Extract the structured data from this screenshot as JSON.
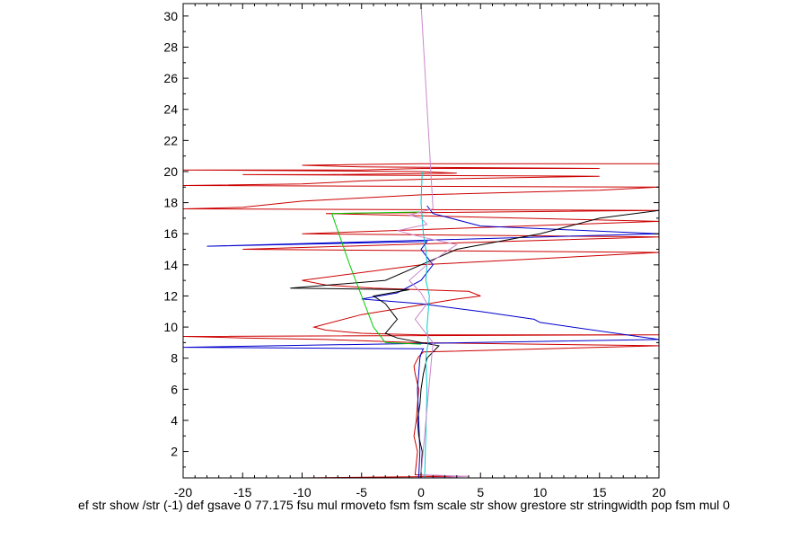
{
  "chart_data": {
    "type": "line",
    "title": "",
    "xlabel": "ef str show /str (-1) def gsave 0 77.175 fsu mul rmoveto fsm fsm scale str show grestore str stringwidth pop fsm mul 0",
    "ylabel": "",
    "xlim": [
      -20,
      20
    ],
    "ylim": [
      0.3,
      30.8
    ],
    "x_ticks": [
      -20,
      -15,
      -10,
      -5,
      0,
      5,
      10,
      15,
      20
    ],
    "x_tick_labels": [
      "-20",
      "-15",
      "-10",
      "-5",
      "0",
      "5",
      "10",
      "15",
      "20"
    ],
    "y_ticks": [
      2,
      4,
      6,
      8,
      10,
      12,
      14,
      16,
      18,
      20,
      22,
      24,
      26,
      28,
      30
    ],
    "y_tick_labels": [
      "2",
      "4",
      "6",
      "8",
      "10",
      "12",
      "14",
      "16",
      "18",
      "20",
      "22",
      "24",
      "26",
      "28",
      "30"
    ],
    "grid": false,
    "legend": "none",
    "series": [
      {
        "color": "#cc0000",
        "x": [
          -10,
          3,
          -0.5,
          -0.3,
          -0.6,
          -0.4,
          -0.3,
          -0.2,
          -0.5,
          -0.6,
          -0.4,
          -0.2,
          0.2,
          20,
          -0.5,
          -8,
          -15,
          -20,
          20,
          0,
          -5,
          -8,
          -9,
          -5,
          3,
          5,
          4,
          0,
          -4,
          -8,
          -10,
          0,
          20,
          -15,
          20,
          -10,
          20,
          -8,
          20,
          -20,
          -15,
          -10,
          0,
          15,
          20,
          -20,
          -10,
          -5,
          0,
          15,
          -15,
          -8,
          3,
          0,
          -20,
          -5,
          0,
          15,
          -5,
          -10,
          0,
          20
        ],
        "y": [
          0.3,
          0.4,
          0.5,
          2,
          3,
          4,
          5,
          6,
          7,
          7.5,
          7.8,
          8.1,
          8.4,
          8.8,
          9.0,
          9.2,
          9.3,
          9.4,
          9.5,
          9.5,
          9.6,
          9.8,
          10.0,
          10.8,
          11.8,
          12.0,
          12.3,
          12.4,
          12.5,
          12.7,
          13.0,
          14.0,
          14.8,
          15.0,
          15.8,
          16.0,
          16.8,
          17.3,
          17.5,
          17.6,
          17.7,
          18.1,
          18.5,
          18.8,
          19.0,
          19.1,
          19.2,
          19.4,
          19.5,
          19.7,
          19.8,
          19.8,
          19.9,
          20.0,
          20.1,
          20.1,
          20.2,
          20.2,
          20.3,
          20.4,
          20.5,
          20.5
        ]
      },
      {
        "color": "#0000cc",
        "x": [
          -0.2,
          -0.1,
          -0.2,
          -0.3,
          -0.2,
          -0.1,
          0,
          0.2,
          -20,
          20,
          10,
          9.5,
          5,
          0,
          -5,
          -2,
          0,
          1,
          0,
          0.5,
          -18,
          20,
          5,
          1,
          0.5
        ],
        "y": [
          0.3,
          2,
          4,
          6,
          7,
          8,
          8.3,
          8.6,
          8.7,
          9.2,
          10.3,
          10.5,
          11.0,
          11.5,
          11.8,
          12.2,
          13,
          14,
          15.0,
          15.5,
          15.2,
          16.0,
          16.5,
          17.3,
          17.8
        ]
      },
      {
        "color": "#000000",
        "x": [
          0,
          0.1,
          -0.2,
          -0.3,
          -0.1,
          0,
          0.2,
          0.5,
          1.5,
          0,
          -2,
          -3,
          -2,
          -3,
          -4,
          -1,
          -11,
          -3,
          0,
          3,
          10,
          15,
          20
        ],
        "y": [
          0.5,
          2,
          3,
          4,
          5,
          6,
          7,
          8,
          8.8,
          9.0,
          9.3,
          9.6,
          10.5,
          11.5,
          12.0,
          12.4,
          12.5,
          13.0,
          14.0,
          15.0,
          16.0,
          17.0,
          17.5
        ]
      },
      {
        "color": "#00cc00",
        "x": [
          0,
          -3,
          -4,
          -5,
          -6,
          -7.5,
          0
        ],
        "y": [
          8.9,
          9.0,
          10.0,
          12.0,
          14.0,
          17.3,
          17.4
        ]
      },
      {
        "color": "#00cccc",
        "x": [
          0.3,
          0.4,
          0.5,
          0.4,
          0.6,
          0.5,
          0.7,
          0.4,
          0.5,
          0.4,
          0.2,
          0.1,
          0,
          0.1
        ],
        "y": [
          0.3,
          3,
          6,
          8,
          9,
          10,
          12,
          13,
          14,
          15,
          16,
          17,
          18,
          20
        ]
      },
      {
        "color": "#cc88cc",
        "x": [
          0,
          4,
          0,
          1,
          0.5,
          -0.5,
          0.5,
          0,
          -1,
          0.5,
          3,
          0,
          -2,
          0.5,
          0,
          -1,
          1,
          0
        ],
        "y": [
          0.3,
          0.4,
          0.5,
          9.0,
          9.5,
          10.5,
          11.5,
          12.2,
          13.0,
          14.0,
          15.3,
          15.8,
          16.2,
          16.6,
          17.0,
          17.2,
          17.6,
          30.8
        ]
      }
    ]
  }
}
